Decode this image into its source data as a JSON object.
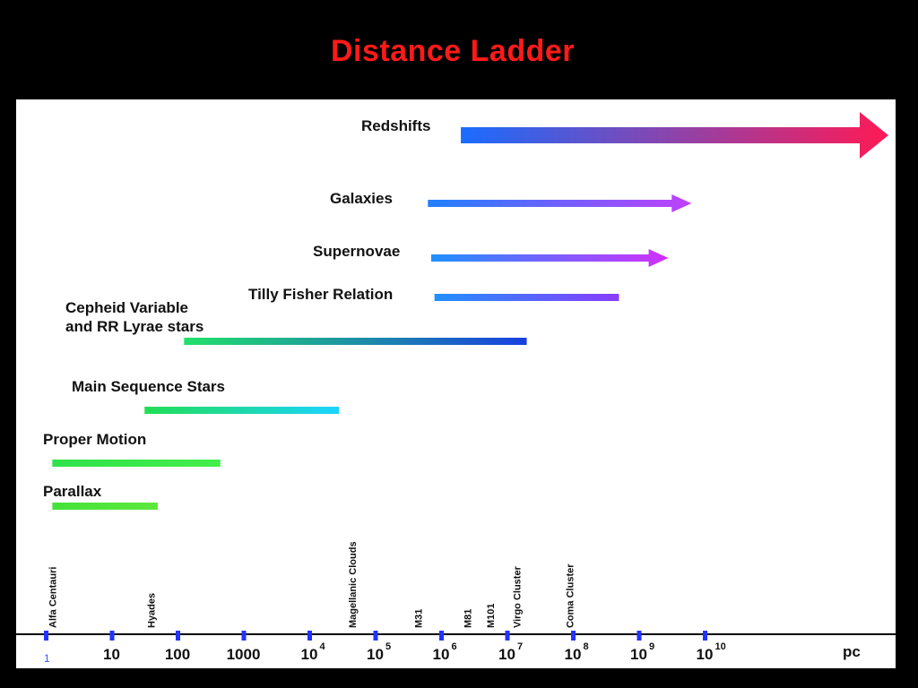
{
  "chart_data": {
    "type": "range-bar",
    "title": "Distance Ladder",
    "xunit": "pc",
    "xscale": "log",
    "xlim_log10": [
      0,
      10
    ],
    "ticks": [
      {
        "exp": 0,
        "label": "1",
        "sup": ""
      },
      {
        "exp": 1,
        "label": "10",
        "sup": ""
      },
      {
        "exp": 2,
        "label": "100",
        "sup": ""
      },
      {
        "exp": 3,
        "label": "1000",
        "sup": ""
      },
      {
        "exp": 4,
        "label": "10",
        "sup": "4"
      },
      {
        "exp": 5,
        "label": "10",
        "sup": "5"
      },
      {
        "exp": 6,
        "label": "10",
        "sup": "6"
      },
      {
        "exp": 7,
        "label": "10",
        "sup": "7"
      },
      {
        "exp": 8,
        "label": "10",
        "sup": "8"
      },
      {
        "exp": 9,
        "label": "10",
        "sup": "9"
      },
      {
        "exp": 10,
        "label": "10",
        "sup": "10"
      }
    ],
    "methods": [
      {
        "name": [
          "Redshifts"
        ],
        "from_log10": 6.3,
        "to_log10": 12.8,
        "arrow": "big",
        "color_from": "#1a6cff",
        "color_to": "#ff1a55"
      },
      {
        "name": [
          "Galaxies"
        ],
        "from_log10": 5.8,
        "to_log10": 9.8,
        "arrow": "small",
        "color_from": "#2080ff",
        "color_to": "#c040ff"
      },
      {
        "name": [
          "Supernovae"
        ],
        "from_log10": 5.85,
        "to_log10": 9.45,
        "arrow": "small",
        "color_from": "#2090ff",
        "color_to": "#d030ff"
      },
      {
        "name": [
          "Tilly Fisher Relation"
        ],
        "from_log10": 5.9,
        "to_log10": 8.7,
        "arrow": "none",
        "color_from": "#2090ff",
        "color_to": "#8a3cff"
      },
      {
        "name": [
          "Cepheid Variable",
          "and RR Lyrae stars"
        ],
        "from_log10": 2.1,
        "to_log10": 7.3,
        "arrow": "none",
        "color_from": "#22e06a",
        "color_to": "#1840e0"
      },
      {
        "name": [
          "Main Sequence Stars"
        ],
        "from_log10": 1.5,
        "to_log10": 4.45,
        "arrow": "none",
        "color_from": "#22dd55",
        "color_to": "#1ad4ff"
      },
      {
        "name": [
          "Proper Motion"
        ],
        "from_log10": 0.1,
        "to_log10": 2.65,
        "arrow": "none",
        "color_from": "#2ee24a",
        "color_to": "#44ee4a"
      },
      {
        "name": [
          "Parallax"
        ],
        "from_log10": 0.1,
        "to_log10": 1.7,
        "arrow": "none",
        "color_from": "#44e23a",
        "color_to": "#5ee83c"
      }
    ],
    "landmarks": [
      {
        "name": "Alfa Centauri",
        "log10": 0.1
      },
      {
        "name": "Hyades",
        "log10": 1.6
      },
      {
        "name": "Magellanic Clouds",
        "log10": 4.65
      },
      {
        "name": "M31",
        "log10": 5.65
      },
      {
        "name": "M81",
        "log10": 6.4
      },
      {
        "name": "M101",
        "log10": 6.75
      },
      {
        "name": "Virgo Cluster",
        "log10": 7.15
      },
      {
        "name": "Coma Cluster",
        "log10": 7.95
      }
    ],
    "colors": {
      "axis": "#000000",
      "tick": "#2233ff",
      "title": "#ff1a1a",
      "background": "#000000",
      "panel": "#ffffff"
    }
  }
}
